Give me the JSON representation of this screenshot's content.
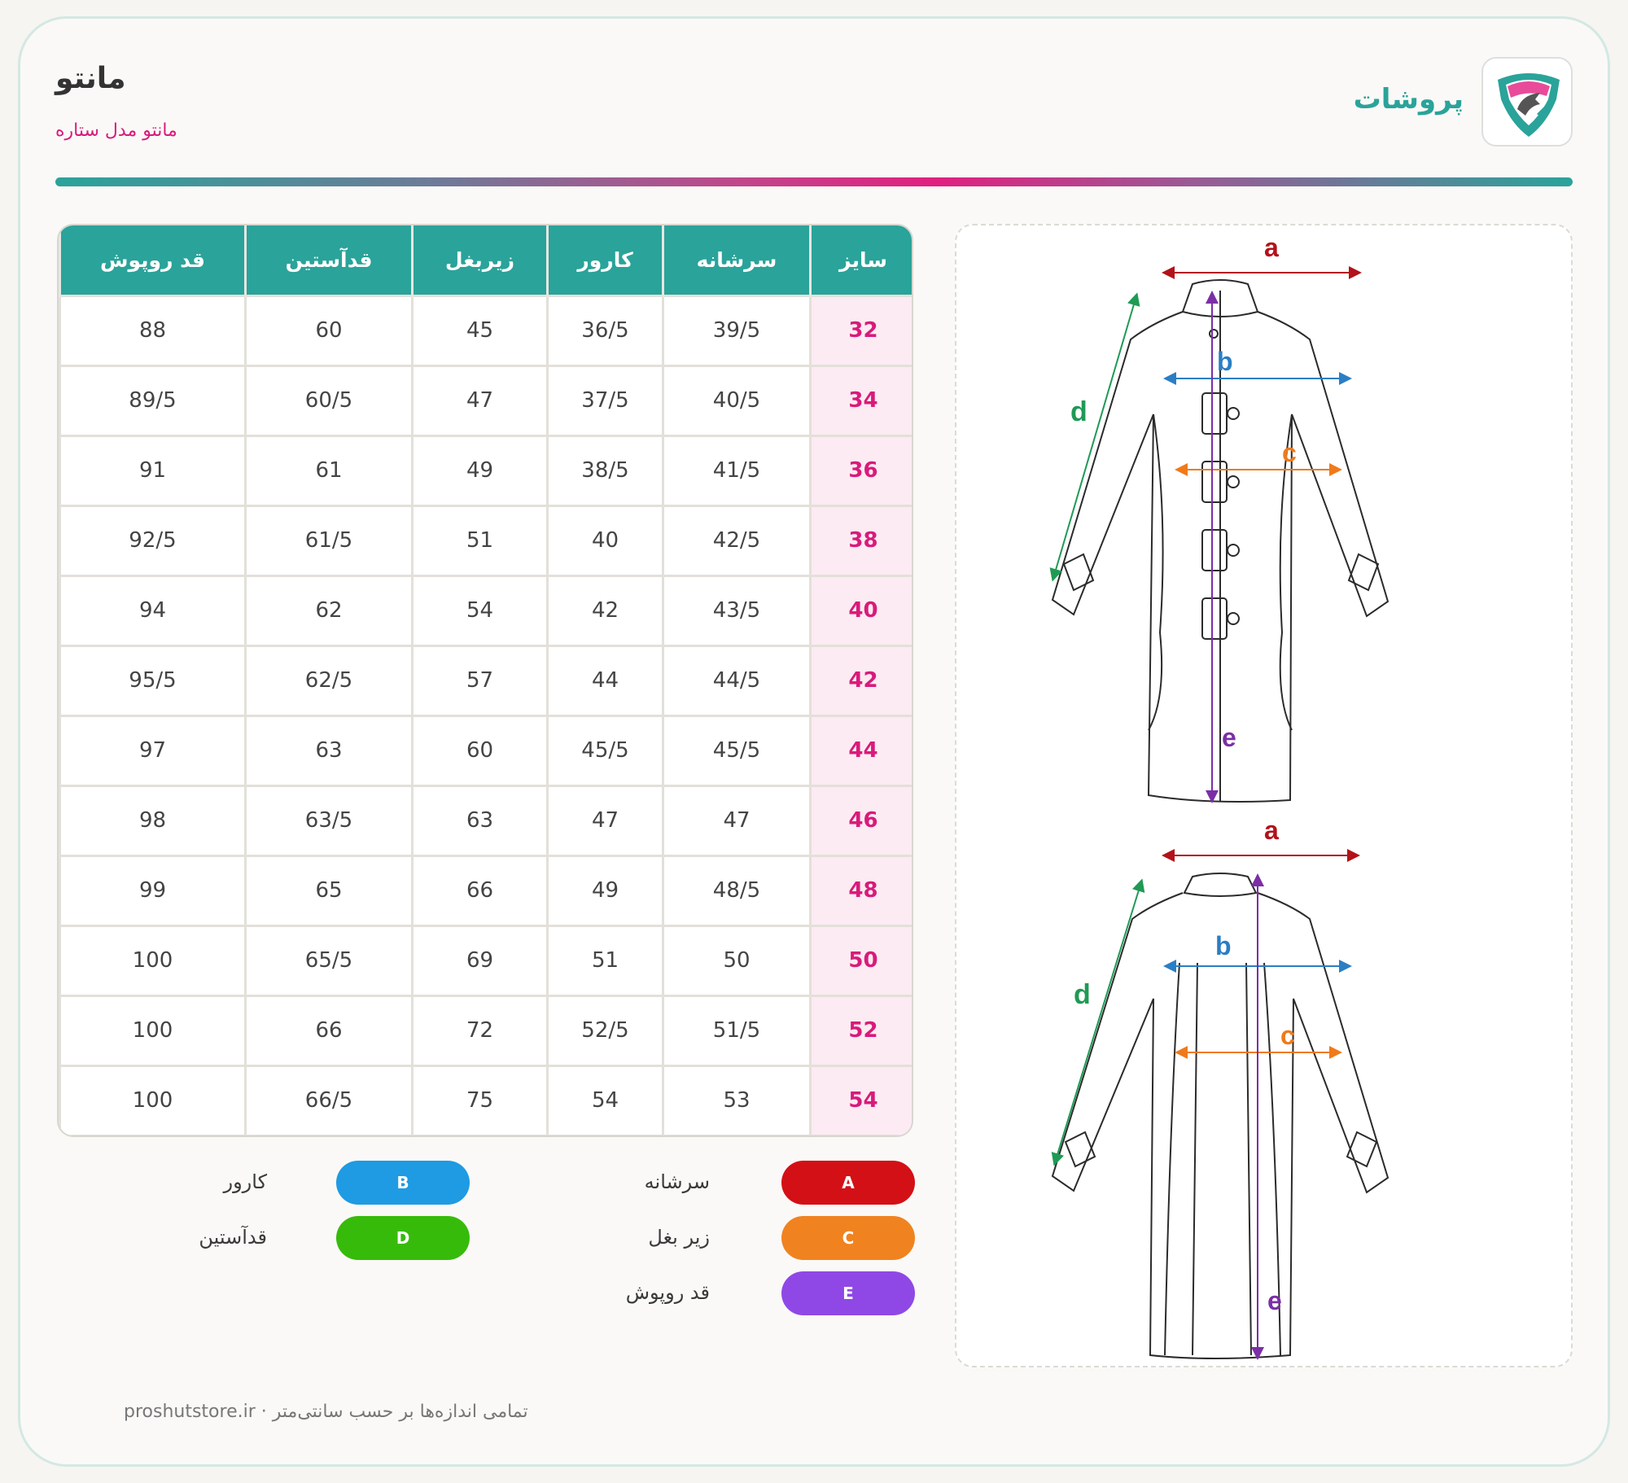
{
  "header": {
    "title": "مانتو",
    "subtitle": "مانتو مدل ستاره",
    "brand_name": "پروشات"
  },
  "table": {
    "columns": [
      "سایز",
      "سرشانه",
      "کارور",
      "زیربغل",
      "قدآستین",
      "قد روپوش"
    ],
    "rows": [
      [
        "32",
        "39/5",
        "36/5",
        "45",
        "60",
        "88"
      ],
      [
        "34",
        "40/5",
        "37/5",
        "47",
        "60/5",
        "89/5"
      ],
      [
        "36",
        "41/5",
        "38/5",
        "49",
        "61",
        "91"
      ],
      [
        "38",
        "42/5",
        "40",
        "51",
        "61/5",
        "92/5"
      ],
      [
        "40",
        "43/5",
        "42",
        "54",
        "62",
        "94"
      ],
      [
        "42",
        "44/5",
        "44",
        "57",
        "62/5",
        "95/5"
      ],
      [
        "44",
        "45/5",
        "45/5",
        "60",
        "63",
        "97"
      ],
      [
        "46",
        "47",
        "47",
        "63",
        "63/5",
        "98"
      ],
      [
        "48",
        "48/5",
        "49",
        "66",
        "65",
        "99"
      ],
      [
        "50",
        "50",
        "51",
        "69",
        "65/5",
        "100"
      ],
      [
        "52",
        "51/5",
        "52/5",
        "72",
        "66",
        "100"
      ],
      [
        "54",
        "53",
        "54",
        "75",
        "66/5",
        "100"
      ]
    ]
  },
  "legend": [
    {
      "key": "A",
      "label": "سرشانه",
      "color": "#d31016"
    },
    {
      "key": "B",
      "label": "کارور",
      "color": "#1e9be2"
    },
    {
      "key": "C",
      "label": "زیر بغل",
      "color": "#f0831f"
    },
    {
      "key": "D",
      "label": "قدآستین",
      "color": "#37bb0a"
    },
    {
      "key": "E",
      "label": "قد روپوش",
      "color": "#8f48e6"
    }
  ],
  "diagram": {
    "front_labels": {
      "a": "a",
      "b": "b",
      "c": "c",
      "d": "d",
      "e": "e"
    },
    "back_labels": {
      "a": "a",
      "b": "b",
      "c": "c",
      "d": "d",
      "e": "e"
    },
    "colors": {
      "a": "#b3121a",
      "b": "#2a7ec4",
      "c": "#f07a1a",
      "d": "#1f9a55",
      "e": "#7b2fa6"
    }
  },
  "footer": {
    "text": "تمامی اندازه‌ها بر حسب سانتی‌متر",
    "separator": "·",
    "site": "proshutstore.ir"
  },
  "brand": {
    "primary": "#2aa39a",
    "accent": "#d81b7b"
  }
}
